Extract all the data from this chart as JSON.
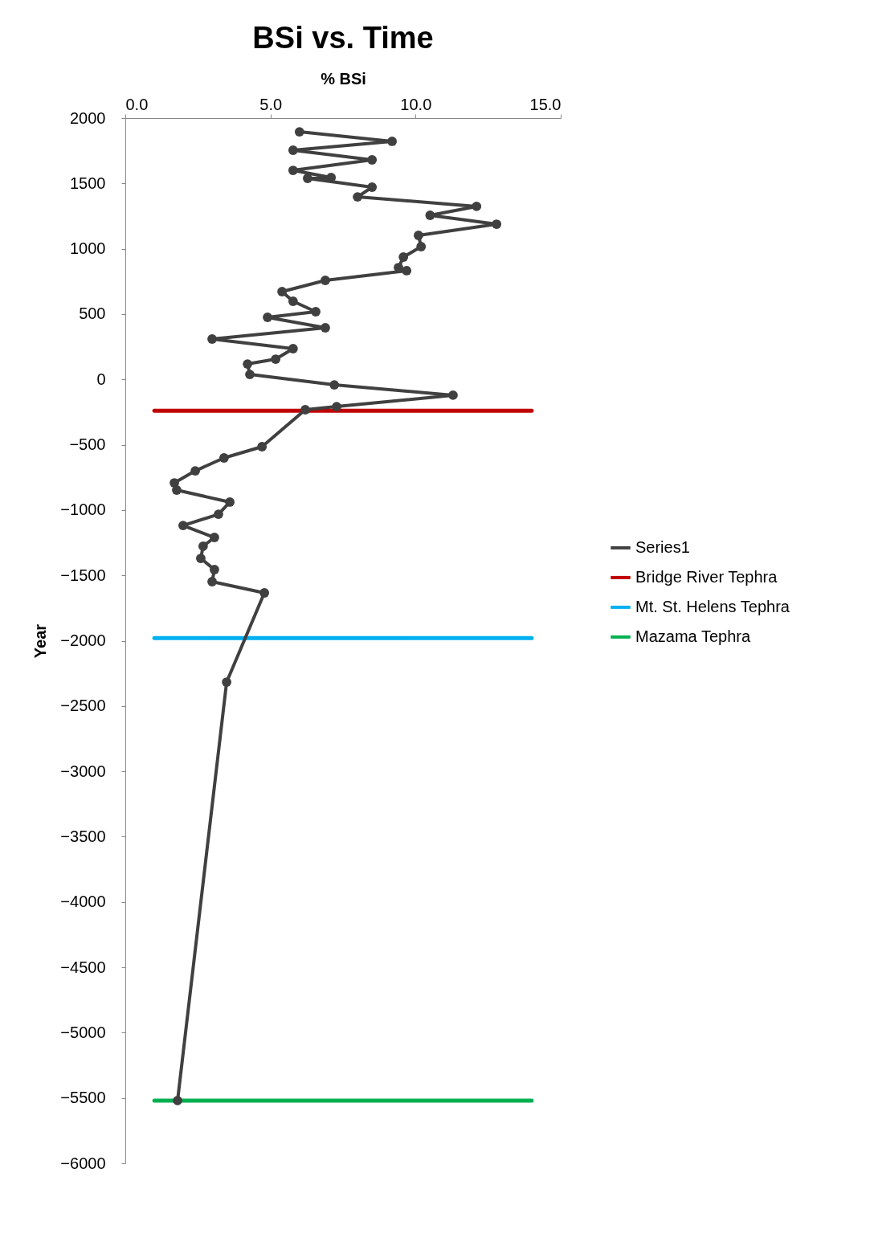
{
  "chart_data": {
    "type": "line",
    "title": "BSi vs. Time",
    "xlabel": "% BSi",
    "ylabel": "Year",
    "xlim": [
      0,
      15
    ],
    "xticks": [
      {
        "value": 0,
        "label": "0.0"
      },
      {
        "value": 5,
        "label": "5.0"
      },
      {
        "value": 10,
        "label": "10.0"
      },
      {
        "value": 15,
        "label": "15.0"
      }
    ],
    "ylim": [
      -6000,
      2000
    ],
    "yticks": [
      2000,
      1500,
      1000,
      500,
      0,
      -500,
      -1000,
      -1500,
      -2000,
      -2500,
      -3000,
      -3500,
      -4000,
      -4500,
      -5000,
      -5500,
      -6000
    ],
    "grid": false,
    "legend": "right",
    "line_style": "solid",
    "series": [
      {
        "name": "Series1",
        "color": "#404040",
        "marker": "circle",
        "x": [
          6.0,
          9.19,
          5.78,
          8.5,
          5.78,
          7.09,
          6.28,
          8.5,
          8.0,
          12.1,
          10.5,
          12.79,
          10.1,
          10.19,
          9.58,
          9.41,
          9.69,
          6.89,
          5.4,
          5.78,
          6.56,
          4.9,
          6.89,
          2.99,
          5.78,
          5.18,
          4.21,
          4.29,
          7.2,
          11.29,
          7.28,
          6.2,
          4.71,
          3.4,
          2.41,
          1.69,
          1.77,
          3.6,
          3.21,
          1.99,
          3.07,
          2.68,
          2.6,
          3.07,
          2.99,
          4.79,
          3.49,
          1.8
        ],
        "values": [
          1895,
          1822,
          1754,
          1680,
          1600,
          1545,
          1539,
          1471,
          1397,
          1324,
          1256,
          1188,
          1102,
          1016,
          936,
          856,
          832,
          758,
          672,
          598,
          518,
          475,
          395,
          309,
          235,
          155,
          118,
          38,
          -42,
          -121,
          -208,
          -232,
          -515,
          -601,
          -700,
          -792,
          -847,
          -939,
          -1032,
          -1118,
          -1210,
          -1277,
          -1370,
          -1456,
          -1548,
          -1634,
          -2317,
          -5520
        ]
      },
      {
        "name": "Bridge River Tephra",
        "color": "#c00000",
        "marker": "none",
        "x": [
          1.0,
          14.0
        ],
        "values": [
          -240,
          -240
        ]
      },
      {
        "name": "Mt. St. Helens Tephra",
        "color": "#00b0f0",
        "marker": "none",
        "x": [
          1.0,
          14.0
        ],
        "values": [
          -1980,
          -1980
        ]
      },
      {
        "name": "Mazama Tephra",
        "color": "#00b050",
        "marker": "none",
        "x": [
          1.0,
          14.0
        ],
        "values": [
          -5520,
          -5520
        ]
      }
    ]
  }
}
